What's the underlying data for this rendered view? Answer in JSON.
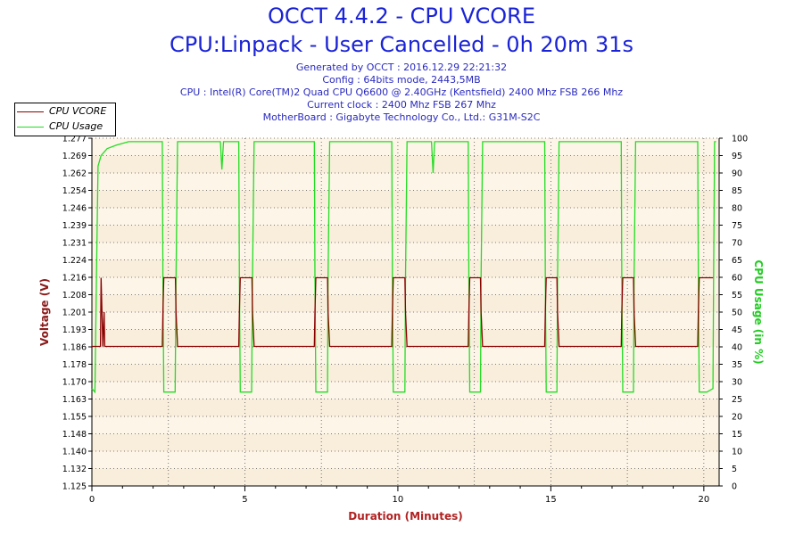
{
  "header": {
    "title1": "OCCT 4.4.2 - CPU VCORE",
    "title2": "CPU:Linpack - User Cancelled - 0h 20m 31s",
    "info": [
      "Generated by OCCT : 2016.12.29 22:21:32",
      "Config : 64bits mode, 2443,5MB",
      "CPU : Intel(R) Core(TM)2 Quad CPU Q6600 @ 2.40GHz (Kentsfield) 2400 Mhz FSB 266 Mhz",
      "Current clock : 2400 Mhz FSB 267 Mhz",
      "MotherBoard : Gigabyte Technology Co., Ltd.: G31M-S2C"
    ]
  },
  "chart_data": {
    "type": "line",
    "xlabel": "Duration (Minutes)",
    "ylabel_left": "Voltage (V)",
    "ylabel_right": "CPU Usage (in %)",
    "xlim": [
      0,
      20.5
    ],
    "ylim_left": [
      1.125,
      1.277
    ],
    "ylim_right": [
      0,
      100
    ],
    "x_ticks": [
      0,
      5,
      10,
      15,
      20
    ],
    "y_ticks_left": [
      1.125,
      1.132,
      1.14,
      1.148,
      1.155,
      1.163,
      1.17,
      1.178,
      1.186,
      1.193,
      1.201,
      1.208,
      1.216,
      1.224,
      1.231,
      1.239,
      1.246,
      1.254,
      1.262,
      1.269,
      1.277
    ],
    "y_tick_labels_left": [
      "1.125",
      "1.132",
      "1.140",
      "1.148",
      "1.155",
      "1.163",
      "1.170",
      "1.178",
      "1.186",
      "1.193",
      "1.201",
      "1.208",
      "1.216",
      "1.224",
      "1.231",
      "1.239",
      "1.246",
      "1.254",
      "1.262",
      "1.269",
      "1.277"
    ],
    "y_ticks_right": [
      0,
      5,
      10,
      15,
      20,
      25,
      30,
      35,
      40,
      45,
      50,
      55,
      60,
      65,
      70,
      75,
      80,
      85,
      90,
      95,
      100
    ],
    "grid": true,
    "legend": "top-left",
    "colors": {
      "vcore": "#8b0000",
      "usage": "#22dd22",
      "bg": "#fdf5e8",
      "label_left": "#8b1a1a",
      "label_right": "#22cc22",
      "xlabel": "#b22222"
    },
    "series": [
      {
        "name": "CPU VCORE",
        "x": [
          0,
          0.28,
          0.3,
          0.33,
          0.36,
          0.4,
          0.42,
          2.3,
          2.32,
          2.35,
          2.38,
          2.73,
          2.75,
          2.8,
          4.8,
          4.82,
          4.85,
          4.88,
          5.23,
          5.25,
          5.3,
          7.27,
          7.29,
          7.32,
          7.35,
          7.7,
          7.72,
          7.77,
          9.8,
          9.82,
          9.85,
          9.88,
          10.23,
          10.25,
          10.3,
          12.3,
          12.32,
          12.35,
          12.38,
          12.7,
          12.72,
          12.77,
          14.8,
          14.82,
          14.85,
          14.88,
          15.2,
          15.22,
          15.27,
          17.3,
          17.32,
          17.35,
          17.38,
          17.7,
          17.72,
          17.77,
          19.8,
          19.82,
          19.85,
          19.88,
          20.1,
          20.3
        ],
        "values": [
          1.186,
          1.186,
          1.216,
          1.201,
          1.186,
          1.201,
          1.186,
          1.186,
          1.201,
          1.216,
          1.216,
          1.216,
          1.201,
          1.186,
          1.186,
          1.201,
          1.216,
          1.216,
          1.216,
          1.201,
          1.186,
          1.186,
          1.201,
          1.216,
          1.216,
          1.216,
          1.201,
          1.186,
          1.186,
          1.201,
          1.216,
          1.216,
          1.216,
          1.201,
          1.186,
          1.186,
          1.201,
          1.216,
          1.216,
          1.216,
          1.201,
          1.186,
          1.186,
          1.201,
          1.216,
          1.216,
          1.216,
          1.201,
          1.186,
          1.186,
          1.201,
          1.216,
          1.216,
          1.216,
          1.201,
          1.186,
          1.186,
          1.201,
          1.216,
          1.216,
          1.216,
          1.216
        ]
      },
      {
        "name": "CPU Usage",
        "x": [
          0,
          0.1,
          0.15,
          0.2,
          0.3,
          0.5,
          0.8,
          1.2,
          1.6,
          2.0,
          2.3,
          2.32,
          2.35,
          2.55,
          2.72,
          2.75,
          2.8,
          3.4,
          4.0,
          4.2,
          4.25,
          4.3,
          4.8,
          4.82,
          4.85,
          5.05,
          5.22,
          5.25,
          5.3,
          6.0,
          7.27,
          7.29,
          7.32,
          7.5,
          7.7,
          7.72,
          7.77,
          8.5,
          9.8,
          9.82,
          9.85,
          10.05,
          10.23,
          10.25,
          10.3,
          11.0,
          11.1,
          11.15,
          11.2,
          12.3,
          12.32,
          12.35,
          12.55,
          12.7,
          12.72,
          12.77,
          14.0,
          14.8,
          14.82,
          14.85,
          15.0,
          15.2,
          15.22,
          15.27,
          16.5,
          17.3,
          17.32,
          17.35,
          17.55,
          17.7,
          17.72,
          17.77,
          19.0,
          19.8,
          19.82,
          19.85,
          20.1,
          20.3,
          20.32,
          20.35,
          20.4
        ],
        "values": [
          28,
          27,
          60,
          92,
          95,
          97,
          98,
          99,
          99,
          99,
          99,
          60,
          27,
          27,
          27,
          60,
          99,
          99,
          99,
          99,
          91,
          99,
          99,
          60,
          27,
          27,
          27,
          60,
          99,
          99,
          99,
          60,
          27,
          27,
          27,
          60,
          99,
          99,
          99,
          60,
          27,
          27,
          27,
          60,
          99,
          99,
          99,
          90,
          99,
          99,
          60,
          27,
          27,
          27,
          60,
          99,
          99,
          99,
          60,
          27,
          27,
          27,
          60,
          99,
          99,
          99,
          60,
          27,
          27,
          27,
          60,
          99,
          99,
          99,
          60,
          27,
          27,
          28,
          60,
          99,
          99
        ]
      }
    ]
  }
}
